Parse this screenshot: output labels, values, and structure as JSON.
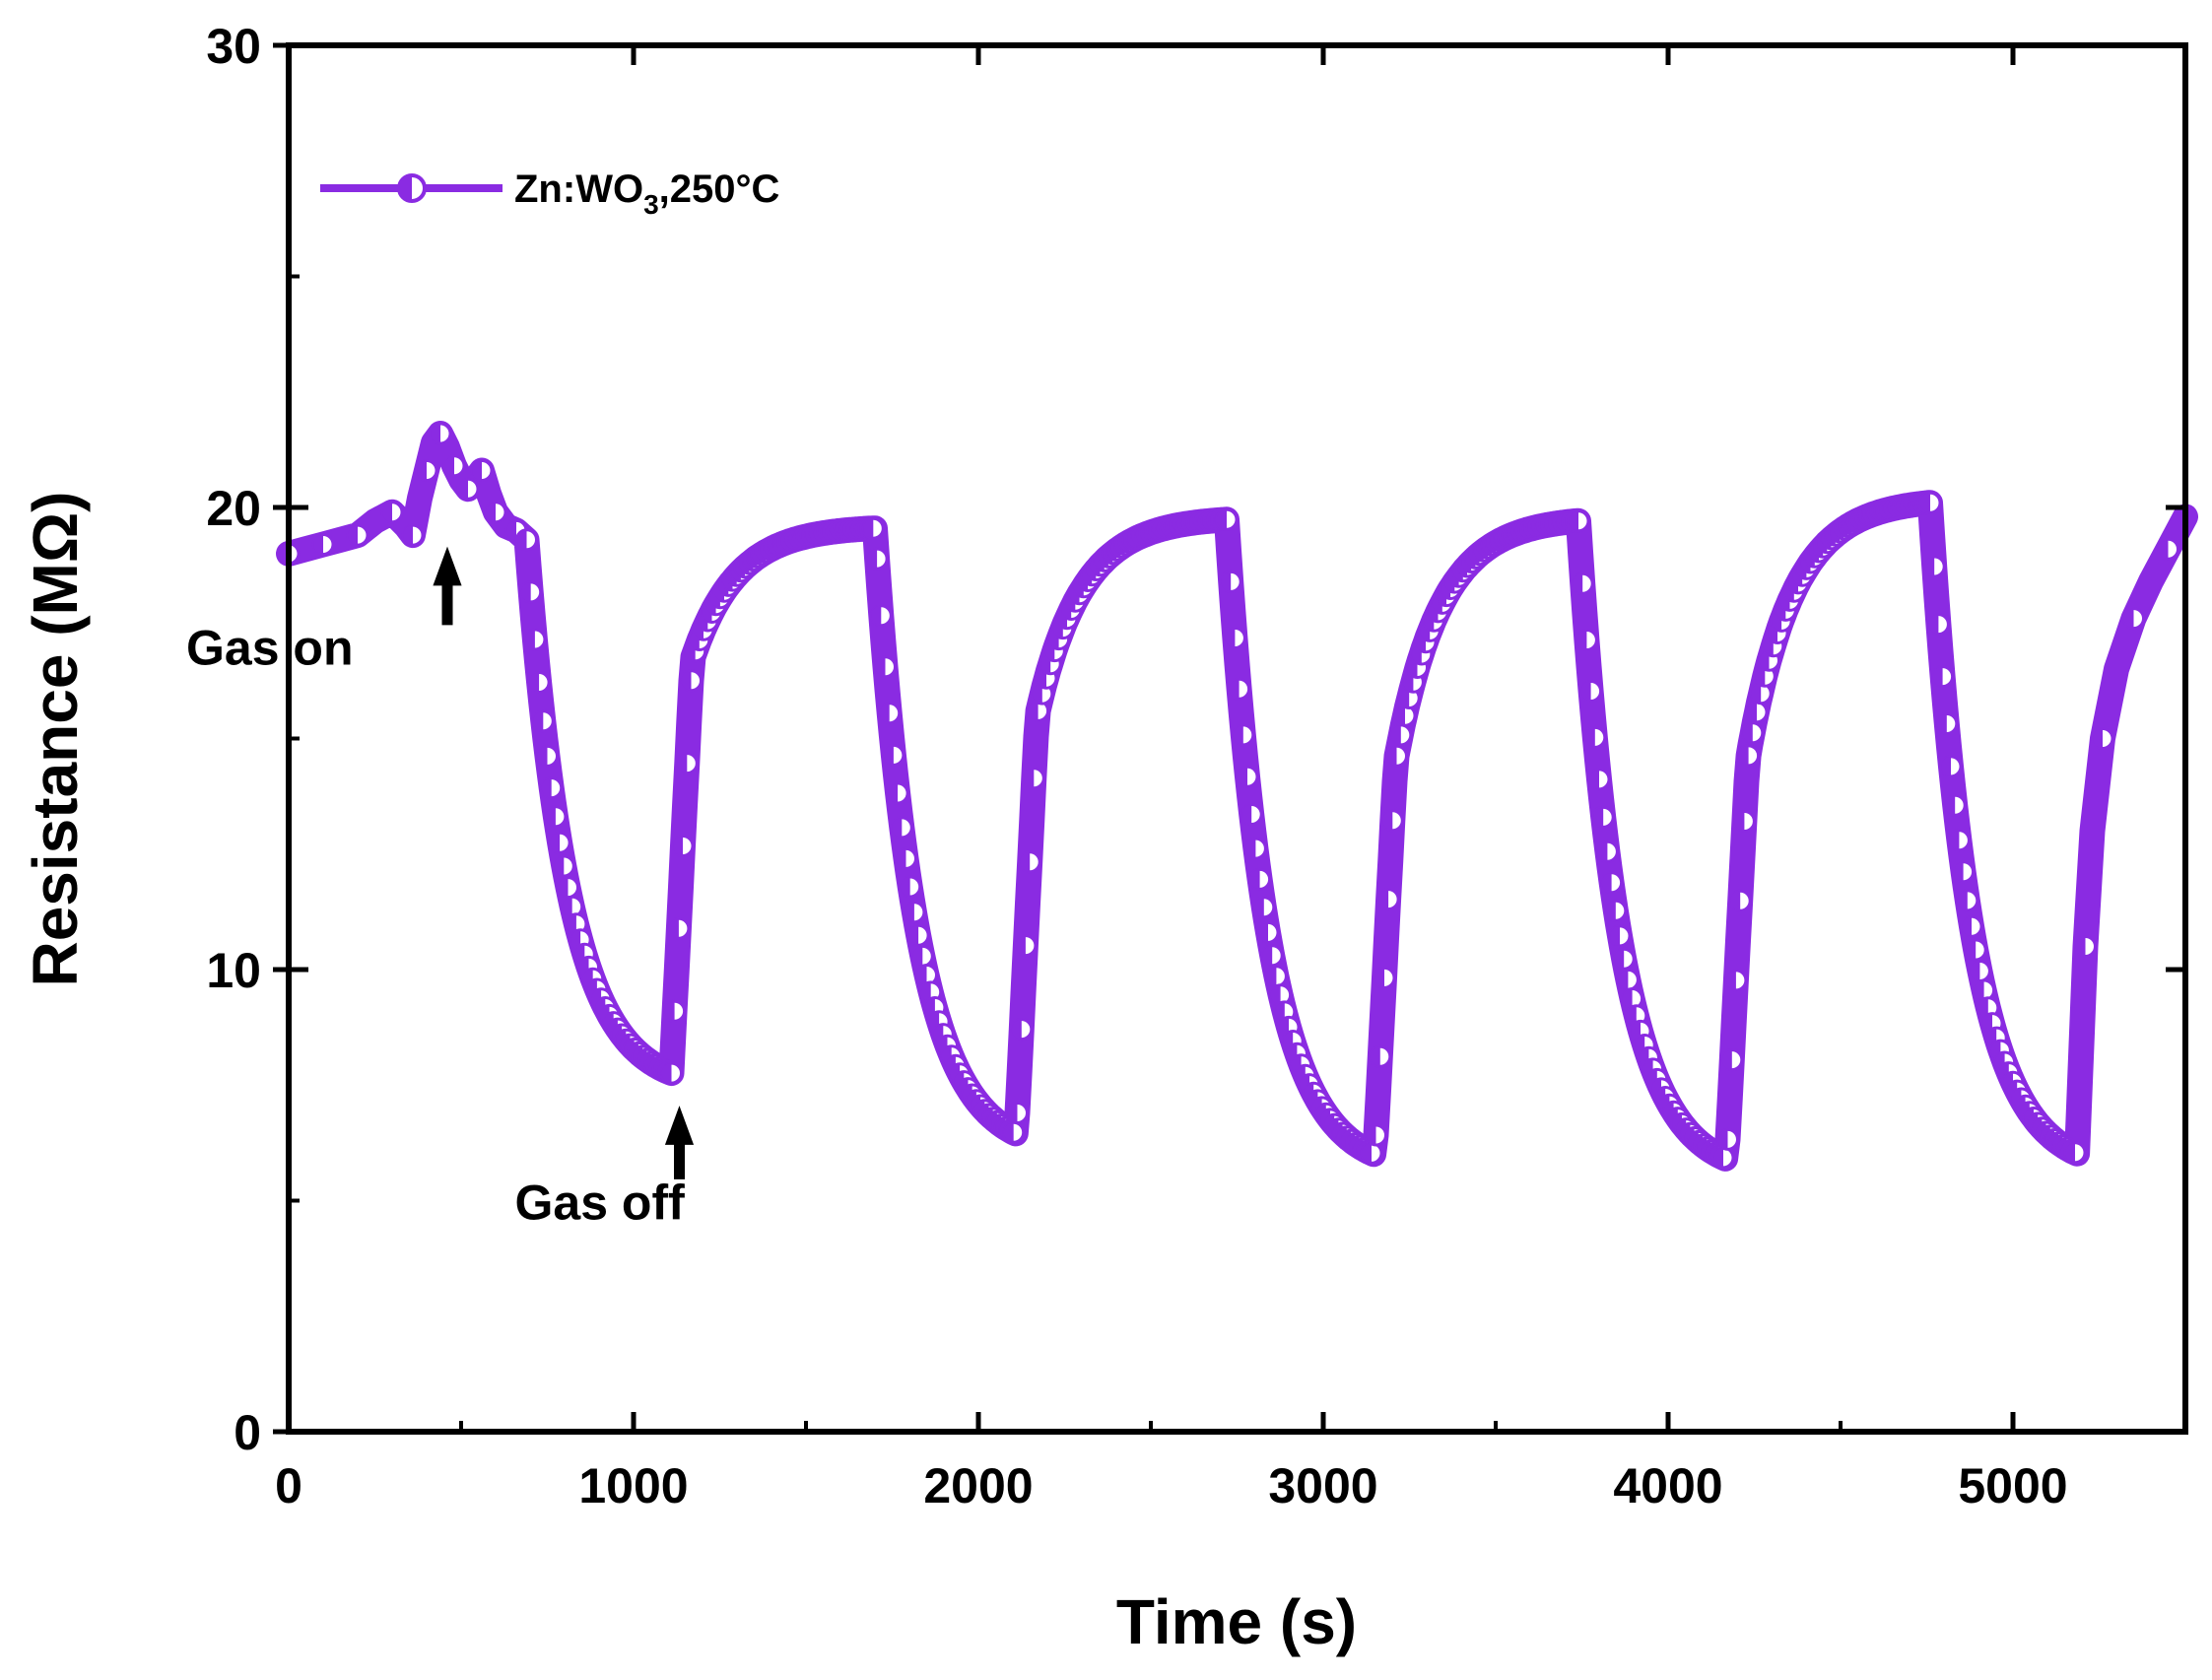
{
  "chart_data": {
    "type": "scatter",
    "xlabel": "Time (s)",
    "ylabel": "Resistance (MΩ)",
    "xlim": [
      0,
      5500
    ],
    "ylim": [
      0,
      30
    ],
    "x_ticks": [
      0,
      1000,
      2000,
      3000,
      4000,
      5000
    ],
    "x_tick_labels": [
      "0",
      "1000",
      "2000",
      "3000",
      "4000",
      "5000"
    ],
    "y_ticks": [
      0,
      10,
      20,
      30
    ],
    "y_tick_labels": [
      "0",
      "10",
      "20",
      "30"
    ],
    "x_minor_ticks": [
      500,
      1500,
      2500,
      3500,
      4500,
      5500
    ],
    "y_minor_ticks": [
      5,
      15,
      25
    ],
    "grid": false,
    "legend_position": "top-left",
    "series": [
      {
        "name_main": "Zn:WO",
        "name_sub": "3",
        "name_tail": ",250°C",
        "color": "#8A2BE2",
        "marker": "half-filled-circle",
        "cycles": [
          {
            "on": 690,
            "off": 1110,
            "baseline_start": 19.2,
            "baseline_end": 19.6,
            "min": 7.4
          },
          {
            "on": 1700,
            "off": 2110,
            "baseline_start": 18.0,
            "baseline_end": 19.8,
            "min": 6.0
          },
          {
            "on": 2720,
            "off": 3150,
            "baseline_start": 17.0,
            "baseline_end": 19.8,
            "min": 5.6
          },
          {
            "on": 3740,
            "off": 4170,
            "baseline_start": 17.0,
            "baseline_end": 20.2,
            "min": 5.5
          },
          {
            "on": 4760,
            "off": 5190,
            "baseline_start": 17.0,
            "baseline_end": 20.0,
            "min": 5.6
          }
        ],
        "initial_points": [
          [
            0,
            19.0
          ],
          [
            50,
            19.1
          ],
          [
            100,
            19.2
          ],
          [
            150,
            19.3
          ],
          [
            200,
            19.4
          ],
          [
            250,
            19.7
          ],
          [
            300,
            19.9
          ],
          [
            340,
            19.6
          ],
          [
            360,
            19.4
          ],
          [
            380,
            20.2
          ],
          [
            400,
            20.8
          ],
          [
            420,
            21.4
          ],
          [
            440,
            21.6
          ],
          [
            460,
            21.3
          ],
          [
            480,
            20.9
          ],
          [
            500,
            20.6
          ],
          [
            520,
            20.4
          ],
          [
            540,
            20.6
          ],
          [
            560,
            20.8
          ],
          [
            580,
            20.3
          ],
          [
            600,
            19.9
          ],
          [
            630,
            19.6
          ],
          [
            660,
            19.5
          ],
          [
            690,
            19.3
          ]
        ],
        "final_points": [
          [
            5210,
            10.5
          ],
          [
            5230,
            13.0
          ],
          [
            5260,
            15.0
          ],
          [
            5300,
            16.5
          ],
          [
            5350,
            17.6
          ],
          [
            5400,
            18.4
          ],
          [
            5450,
            19.1
          ],
          [
            5500,
            19.8
          ]
        ]
      }
    ],
    "annotations": [
      {
        "text": "Gas on",
        "x": 460,
        "y": 19.0,
        "label_x": 360,
        "label_y": 16.6
      },
      {
        "text": "Gas off",
        "x": 1110,
        "y": 6.9,
        "label_x": 1170,
        "label_y": 4.6
      }
    ]
  }
}
